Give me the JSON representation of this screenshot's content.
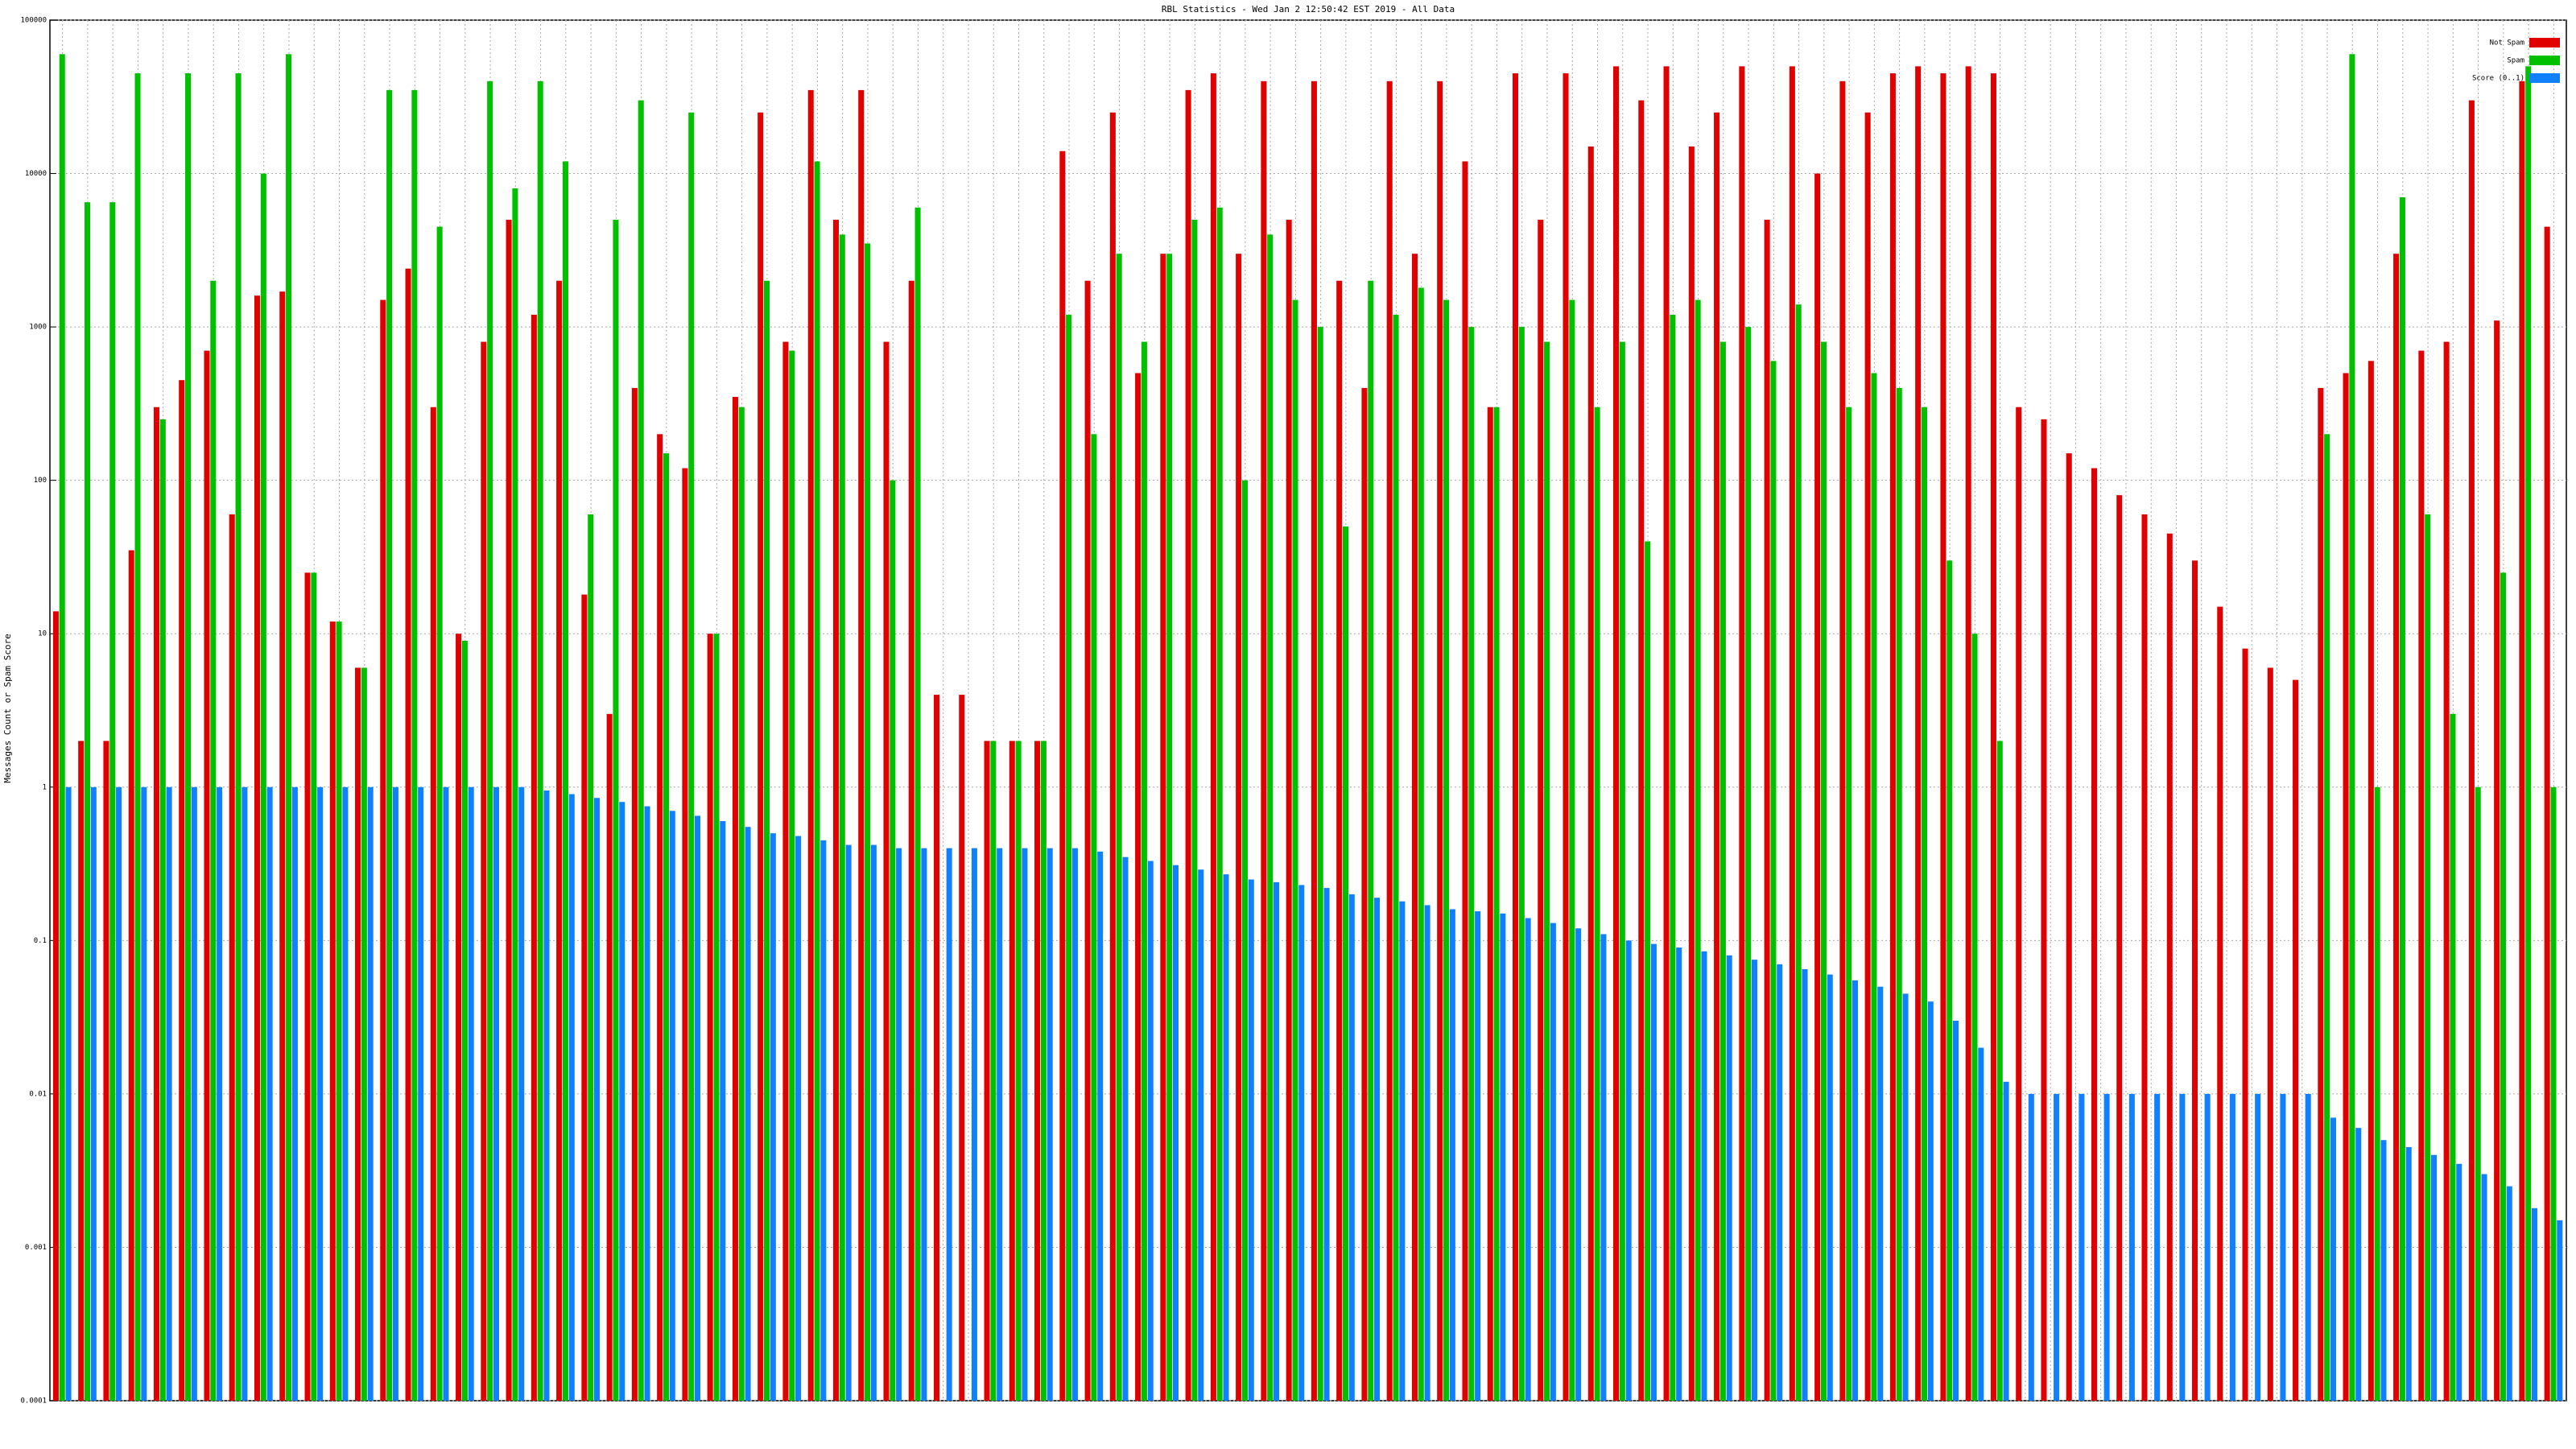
{
  "chart_data": {
    "type": "bar",
    "title": "RBL Statistics - Wed Jan  2 12:50:42 EST 2019 - All Data",
    "y_label": "Messages Count or Spam Score",
    "log_scale": true,
    "grid": true,
    "legend": "upper right",
    "ylim": [
      0.0001,
      100000
    ],
    "yticks": [
      0.0001,
      0.001,
      0.01,
      0.1,
      1,
      10,
      100,
      1000,
      10000,
      100000
    ],
    "series": [
      {
        "name": "Not Spam",
        "color": "#e00000",
        "values": [
          14,
          2,
          2,
          35,
          300,
          450,
          700,
          60,
          1600,
          1700,
          25,
          12,
          6,
          1500,
          2400,
          300,
          10,
          800,
          5000,
          1200,
          2000,
          18,
          3,
          400,
          200,
          120,
          10,
          350,
          25000,
          800,
          35000,
          5000,
          35000,
          800,
          2000,
          4,
          4,
          2,
          2,
          2,
          14000,
          2000,
          25000,
          500,
          3000,
          35000,
          45000,
          3000,
          40000,
          5000,
          40000,
          2000,
          400,
          40000,
          3000,
          40000,
          12000,
          300,
          45000,
          5000,
          45000,
          15000,
          50000,
          30000,
          50000,
          15000,
          25000,
          50000,
          5000,
          50000,
          10000,
          40000,
          25000,
          45000,
          50000,
          45000,
          50000,
          45000,
          300,
          250,
          150,
          120,
          80,
          60,
          45,
          30,
          15,
          8,
          6,
          5,
          400,
          500,
          600,
          3000,
          700,
          800,
          30000,
          1100,
          40000,
          4500
        ]
      },
      {
        "name": "Spam",
        "color": "#00c000",
        "values": [
          60000,
          6500,
          6500,
          45000,
          250,
          45000,
          2000,
          45000,
          10000,
          60000,
          25,
          12,
          6,
          35000,
          35000,
          4500,
          9,
          40000,
          8000,
          40000,
          12000,
          60,
          5000,
          30000,
          150,
          25000,
          10,
          300,
          2000,
          700,
          12000,
          4000,
          3500,
          100,
          6000,
          null,
          null,
          2,
          2,
          2,
          1200,
          200,
          3000,
          800,
          3000,
          5000,
          6000,
          100,
          4000,
          1500,
          1000,
          50,
          2000,
          1200,
          1800,
          1500,
          1000,
          300,
          1000,
          800,
          1500,
          300,
          800,
          40,
          1200,
          1500,
          800,
          1000,
          600,
          1400,
          800,
          300,
          500,
          400,
          300,
          30,
          10,
          2,
          null,
          null,
          null,
          null,
          null,
          null,
          null,
          null,
          null,
          null,
          null,
          null,
          200,
          60000,
          1,
          7000,
          60,
          3,
          1,
          25,
          50000,
          1
        ]
      },
      {
        "name": "Score (0..1)",
        "color": "#1080ff",
        "values": [
          1,
          1,
          1,
          1,
          1,
          1,
          1,
          1,
          1,
          1,
          1,
          1,
          1,
          1,
          1,
          1,
          1,
          1,
          1,
          0.95,
          0.9,
          0.85,
          0.8,
          0.75,
          0.7,
          0.65,
          0.6,
          0.55,
          0.5,
          0.48,
          0.45,
          0.42,
          0.42,
          0.4,
          0.4,
          0.4,
          0.4,
          0.4,
          0.4,
          0.4,
          0.4,
          0.38,
          0.35,
          0.33,
          0.31,
          0.29,
          0.27,
          0.25,
          0.24,
          0.23,
          0.22,
          0.2,
          0.19,
          0.18,
          0.17,
          0.16,
          0.155,
          0.15,
          0.14,
          0.13,
          0.12,
          0.11,
          0.1,
          0.095,
          0.09,
          0.085,
          0.08,
          0.075,
          0.07,
          0.065,
          0.06,
          0.055,
          0.05,
          0.045,
          0.04,
          0.03,
          0.02,
          0.012,
          0.01,
          0.01,
          0.01,
          0.01,
          0.01,
          0.01,
          0.01,
          0.01,
          0.01,
          0.01,
          0.01,
          0.01,
          0.007,
          0.006,
          0.005,
          0.0045,
          0.004,
          0.0035,
          0.003,
          0.0025,
          0.0018,
          0.0015
        ]
      }
    ]
  }
}
